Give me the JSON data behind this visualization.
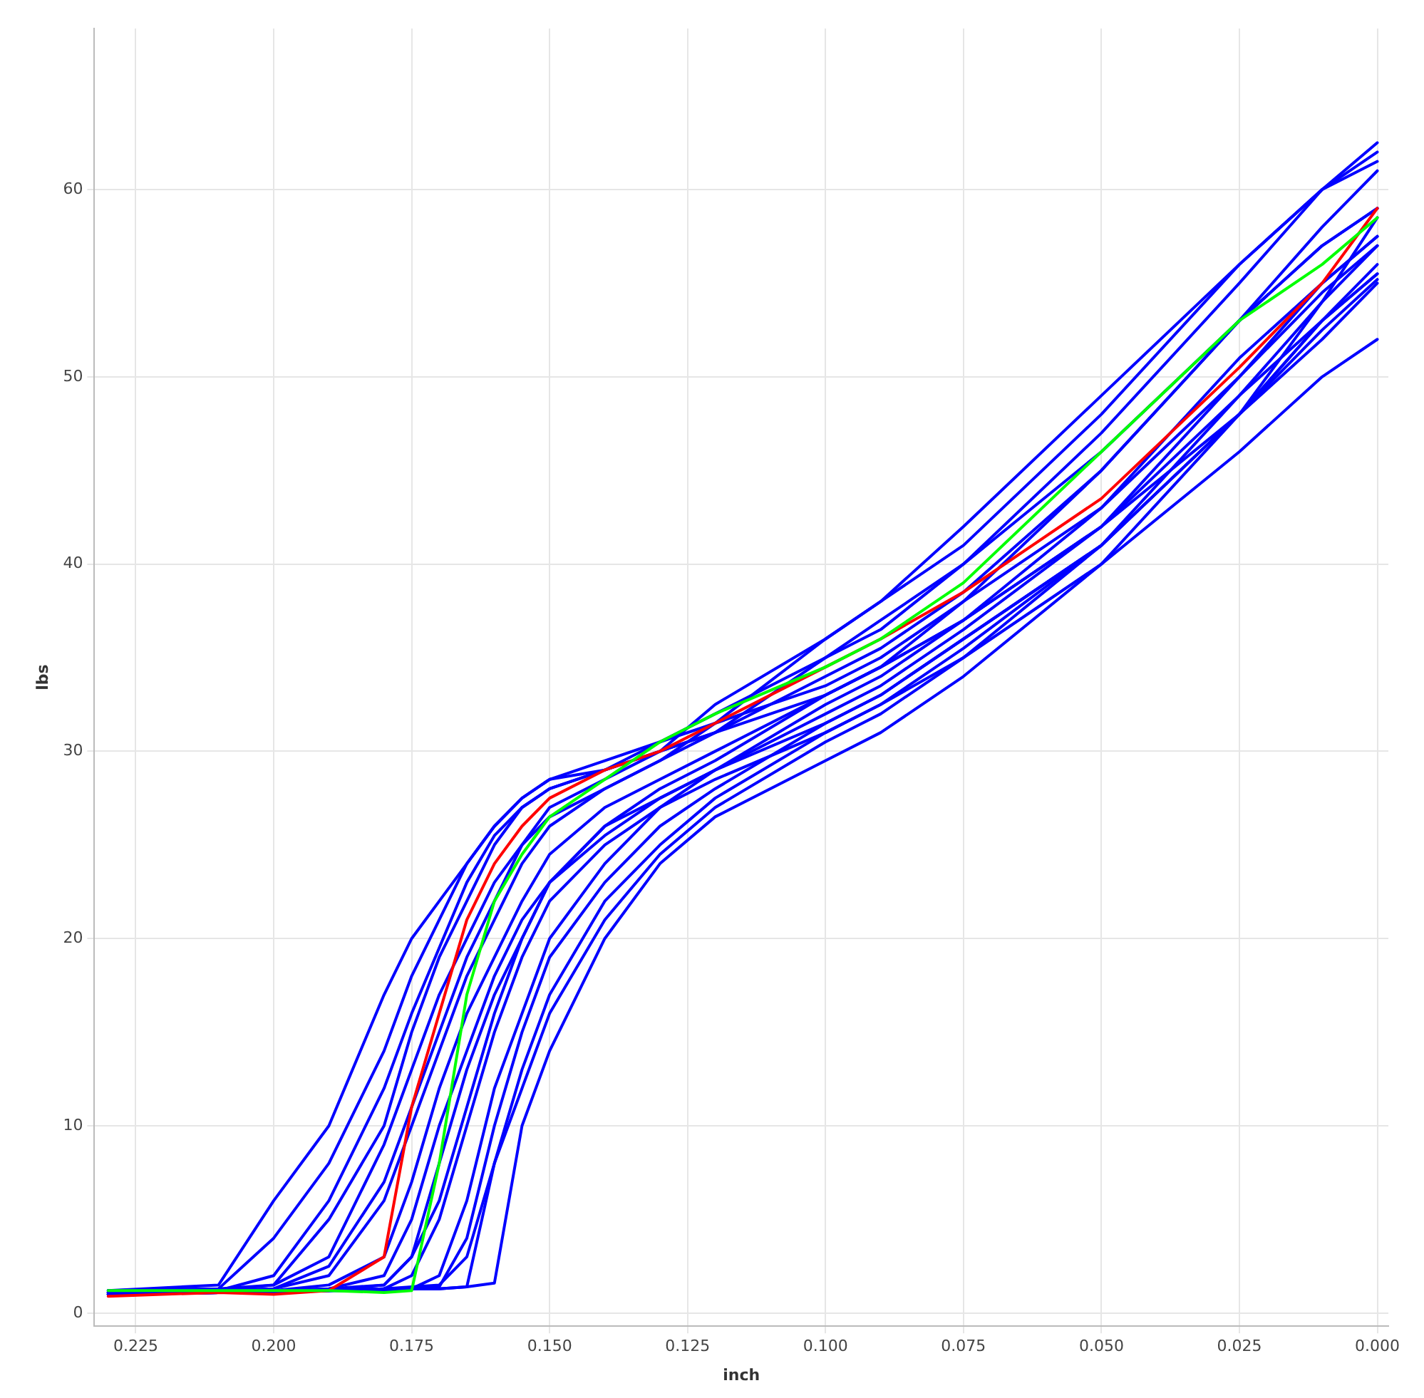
{
  "chart_data": {
    "type": "line",
    "xlabel": "inch",
    "ylabel": "lbs",
    "x": [
      0.23,
      0.21,
      0.2,
      0.19,
      0.18,
      0.175,
      0.17,
      0.165,
      0.16,
      0.155,
      0.15,
      0.14,
      0.13,
      0.12,
      0.1,
      0.09,
      0.075,
      0.05,
      0.025,
      0.01,
      0.0
    ],
    "xlim": [
      0.2325,
      -0.002
    ],
    "xticks": [
      {
        "value": 0.225,
        "label": "0.225"
      },
      {
        "value": 0.2,
        "label": "0.200"
      },
      {
        "value": 0.175,
        "label": "0.175"
      },
      {
        "value": 0.15,
        "label": "0.150"
      },
      {
        "value": 0.125,
        "label": "0.125"
      },
      {
        "value": 0.1,
        "label": "0.100"
      },
      {
        "value": 0.075,
        "label": "0.075"
      },
      {
        "value": 0.05,
        "label": "0.050"
      },
      {
        "value": 0.025,
        "label": "0.025"
      },
      {
        "value": 0,
        "label": "0.000"
      }
    ],
    "ylim": [
      -0.7,
      68.6
    ],
    "yticks": [
      0,
      10,
      20,
      30,
      40,
      50,
      60
    ],
    "grid": true,
    "legend": false,
    "marker": "none",
    "line_style": "solid",
    "series": [
      {
        "color": "#0000ff",
        "values": [
          1.2,
          1.5,
          6,
          10,
          17,
          20,
          22,
          24,
          26,
          27.5,
          28.5,
          29.5,
          30.5,
          31.5,
          33.5,
          35,
          38,
          43,
          50,
          55,
          57.5
        ]
      },
      {
        "color": "#0000ff",
        "values": [
          1.2,
          1.3,
          4,
          8,
          14,
          18,
          21,
          24,
          26,
          27.5,
          28.5,
          29,
          30,
          31,
          33,
          34.5,
          37,
          42,
          48,
          53,
          55.5
        ]
      },
      {
        "color": "#0000ff",
        "values": [
          1.1,
          1.2,
          2,
          6,
          12,
          16,
          19.5,
          23,
          25.5,
          27,
          28,
          29,
          30,
          31,
          34,
          35.5,
          38.5,
          45,
          53,
          58,
          61
        ]
      },
      {
        "color": "#0000ff",
        "values": [
          1.1,
          1.2,
          1.5,
          3,
          9,
          13,
          17,
          20,
          23,
          25,
          26.5,
          28,
          29.5,
          31,
          35,
          36.5,
          40,
          47,
          55,
          60,
          62.5
        ]
      },
      {
        "color": "#0000ff",
        "values": [
          1.1,
          1.2,
          1.3,
          2,
          6,
          10,
          14,
          18,
          21,
          24,
          26,
          28,
          29.5,
          31.5,
          36,
          38,
          42,
          49,
          56,
          60,
          61.5
        ]
      },
      {
        "color": "#0000ff",
        "values": [
          1,
          1.1,
          1.2,
          1.5,
          3,
          7,
          12,
          16,
          19,
          22,
          24.5,
          27,
          28.5,
          30,
          33,
          34.5,
          37,
          42,
          49,
          53,
          56
        ]
      },
      {
        "color": "#0000ff",
        "values": [
          1,
          1.1,
          1.2,
          1.3,
          2,
          5,
          10,
          14,
          18,
          21,
          23,
          26,
          27.5,
          29,
          32,
          33.5,
          36.5,
          42,
          50,
          54.5,
          57
        ]
      },
      {
        "color": "#0000ff",
        "values": [
          1,
          1.1,
          1.2,
          1.2,
          1.5,
          3,
          8,
          13,
          17,
          20,
          23,
          25.5,
          27.5,
          29,
          31.5,
          33,
          36,
          41,
          48,
          53,
          55.5
        ]
      },
      {
        "color": "#0000ff",
        "values": [
          1,
          1.1,
          1.1,
          1.2,
          1.3,
          2,
          5,
          10,
          15,
          19,
          22,
          25,
          27,
          28.5,
          31,
          32.5,
          35,
          40,
          46,
          50,
          52
        ]
      },
      {
        "color": "#0000ff",
        "values": [
          1,
          1.1,
          1.2,
          1.2,
          1.2,
          1.3,
          2,
          6,
          12,
          16,
          20,
          24,
          27,
          29,
          32.5,
          34,
          37,
          43,
          51,
          55,
          57.5
        ]
      },
      {
        "color": "#0000ff",
        "values": [
          1,
          1.1,
          1.2,
          1.2,
          1.3,
          1.3,
          1.4,
          4,
          10,
          15,
          19,
          23,
          26,
          28,
          31.5,
          33,
          36,
          41,
          48,
          52,
          55
        ]
      },
      {
        "color": "#0000ff",
        "values": [
          1.1,
          1.2,
          1.2,
          1.2,
          1.3,
          1.3,
          1.3,
          1.4,
          8,
          13,
          17,
          22,
          25,
          27.5,
          31,
          32.5,
          35.5,
          41,
          49,
          54,
          57
        ]
      },
      {
        "color": "#0000ff",
        "values": [
          1,
          1.1,
          1.1,
          1.2,
          1.2,
          1.3,
          1.3,
          1.4,
          1.6,
          10,
          14,
          20,
          24,
          26.5,
          29.5,
          31,
          34,
          40,
          48,
          54,
          58.5
        ]
      },
      {
        "color": "#0000ff",
        "values": [
          1.2,
          1.3,
          1.5,
          5,
          10,
          15,
          19,
          22,
          25,
          27,
          28,
          29,
          30.5,
          32,
          35,
          37,
          40,
          46,
          53,
          57,
          59
        ]
      },
      {
        "color": "#0000ff",
        "values": [
          1.1,
          1.2,
          1.3,
          2.5,
          7,
          11,
          15,
          19,
          22,
          25,
          27,
          28.5,
          30,
          32.5,
          36,
          38,
          41,
          48,
          56,
          60,
          62
        ]
      },
      {
        "color": "#0000ff",
        "values": [
          1,
          1.1,
          1.2,
          1.3,
          1.5,
          3,
          6,
          11,
          16,
          20,
          23,
          26,
          28,
          29.5,
          33,
          34.5,
          38,
          45,
          53,
          57,
          59
        ]
      },
      {
        "color": "#0000ff",
        "values": [
          1.05,
          1.1,
          1.2,
          1.2,
          1.3,
          1.4,
          1.5,
          3,
          8,
          12,
          16,
          21,
          24.5,
          27,
          30.5,
          32,
          35,
          41,
          48,
          52.5,
          55.2
        ]
      },
      {
        "color": "#ff0000",
        "values": [
          0.9,
          1.1,
          1,
          1.2,
          3,
          11,
          16,
          21,
          24,
          26,
          27.5,
          29,
          30,
          31.5,
          34.5,
          36,
          38.5,
          43.5,
          50.5,
          55,
          59
        ]
      },
      {
        "color": "#00ff00",
        "values": [
          1.2,
          1.2,
          1.2,
          1.2,
          1.1,
          1.2,
          8,
          17,
          22,
          24.5,
          26.5,
          28.5,
          30.5,
          32,
          34.5,
          36,
          39,
          46,
          53,
          56,
          58.5
        ]
      }
    ]
  }
}
